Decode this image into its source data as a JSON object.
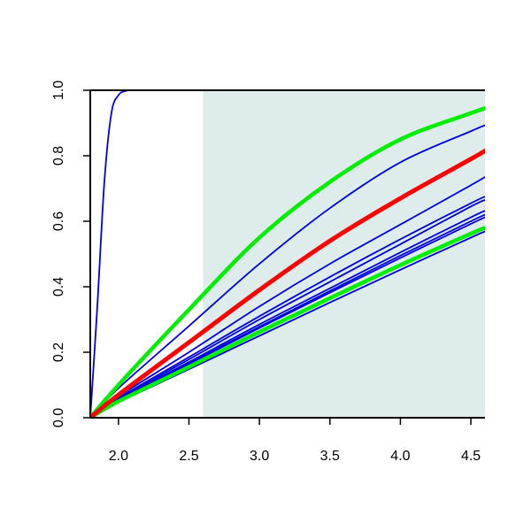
{
  "chart_data": {
    "type": "line",
    "title": "",
    "xlabel": "",
    "ylabel": "",
    "xlim": [
      1.8,
      4.6
    ],
    "ylim": [
      0.0,
      1.0
    ],
    "x_ticks": [
      2.0,
      2.5,
      3.0,
      3.5,
      4.0,
      4.5
    ],
    "x_tick_labels": [
      "2.0",
      "2.5",
      "3.0",
      "3.5",
      "4.0",
      "4.5"
    ],
    "y_ticks": [
      0.0,
      0.2,
      0.4,
      0.6,
      0.8,
      1.0
    ],
    "y_tick_labels": [
      "0.0",
      "0.2",
      "0.4",
      "0.6",
      "0.8",
      "1.0"
    ],
    "grid": false,
    "legend": "none",
    "shaded_region": {
      "x": [
        2.6,
        4.6
      ],
      "color": "#deeceb"
    },
    "series": [
      {
        "color": "#0000dd",
        "width": 1.8,
        "x": [
          1.8,
          1.85,
          1.9,
          1.95,
          2.0,
          2.05,
          2.1,
          2.2,
          4.6
        ],
        "values": [
          0.0,
          0.34,
          0.72,
          0.93,
          0.985,
          0.998,
          1.0,
          1.0,
          1.0
        ]
      },
      {
        "color": "#00ee00",
        "width": 4.5,
        "x": [
          1.8,
          2.0,
          2.5,
          3.0,
          3.5,
          4.0,
          4.5,
          4.6
        ],
        "values": [
          0.0,
          0.1,
          0.33,
          0.55,
          0.72,
          0.85,
          0.93,
          0.945
        ]
      },
      {
        "color": "#0000dd",
        "width": 1.8,
        "x": [
          1.8,
          2.0,
          2.5,
          3.0,
          3.5,
          4.0,
          4.5,
          4.6
        ],
        "values": [
          0.0,
          0.09,
          0.28,
          0.47,
          0.64,
          0.78,
          0.875,
          0.893
        ]
      },
      {
        "color": "#ff0000",
        "width": 5.0,
        "x": [
          1.8,
          2.0,
          2.5,
          3.0,
          3.5,
          4.0,
          4.5,
          4.6
        ],
        "values": [
          0.0,
          0.07,
          0.23,
          0.39,
          0.54,
          0.67,
          0.79,
          0.815
        ]
      },
      {
        "color": "#0000dd",
        "width": 1.8,
        "x": [
          1.8,
          2.0,
          2.5,
          3.0,
          3.5,
          4.0,
          4.5,
          4.6
        ],
        "values": [
          0.0,
          0.065,
          0.2,
          0.34,
          0.47,
          0.59,
          0.71,
          0.735
        ]
      },
      {
        "color": "#0000dd",
        "width": 1.8,
        "x": [
          1.8,
          2.0,
          2.5,
          3.0,
          3.5,
          4.0,
          4.5,
          4.6
        ],
        "values": [
          0.0,
          0.06,
          0.185,
          0.31,
          0.43,
          0.545,
          0.655,
          0.675
        ]
      },
      {
        "color": "#0000dd",
        "width": 1.8,
        "x": [
          1.8,
          2.0,
          2.5,
          3.0,
          3.5,
          4.0,
          4.5,
          4.6
        ],
        "values": [
          0.0,
          0.057,
          0.178,
          0.3,
          0.415,
          0.53,
          0.645,
          0.665
        ]
      },
      {
        "color": "#0000dd",
        "width": 1.8,
        "x": [
          1.8,
          2.0,
          2.5,
          3.0,
          3.5,
          4.0,
          4.5,
          4.6
        ],
        "values": [
          0.0,
          0.055,
          0.17,
          0.285,
          0.395,
          0.505,
          0.612,
          0.632
        ]
      },
      {
        "color": "#0000dd",
        "width": 1.8,
        "x": [
          1.8,
          2.0,
          2.5,
          3.0,
          3.5,
          4.0,
          4.5,
          4.6
        ],
        "values": [
          0.0,
          0.054,
          0.166,
          0.278,
          0.387,
          0.495,
          0.6,
          0.62
        ]
      },
      {
        "color": "#0000dd",
        "width": 1.8,
        "x": [
          1.8,
          2.0,
          2.5,
          3.0,
          3.5,
          4.0,
          4.5,
          4.6
        ],
        "values": [
          0.0,
          0.053,
          0.164,
          0.274,
          0.382,
          0.488,
          0.592,
          0.612
        ]
      },
      {
        "color": "#00ee00",
        "width": 4.5,
        "x": [
          1.8,
          2.0,
          2.5,
          3.0,
          3.5,
          4.0,
          4.5,
          4.6
        ],
        "values": [
          0.0,
          0.05,
          0.155,
          0.262,
          0.365,
          0.466,
          0.562,
          0.58
        ]
      },
      {
        "color": "#0000dd",
        "width": 1.8,
        "x": [
          1.8,
          2.0,
          2.5,
          3.0,
          3.5,
          4.0,
          4.5,
          4.6
        ],
        "values": [
          0.0,
          0.047,
          0.148,
          0.25,
          0.352,
          0.452,
          0.55,
          0.569
        ]
      }
    ]
  }
}
